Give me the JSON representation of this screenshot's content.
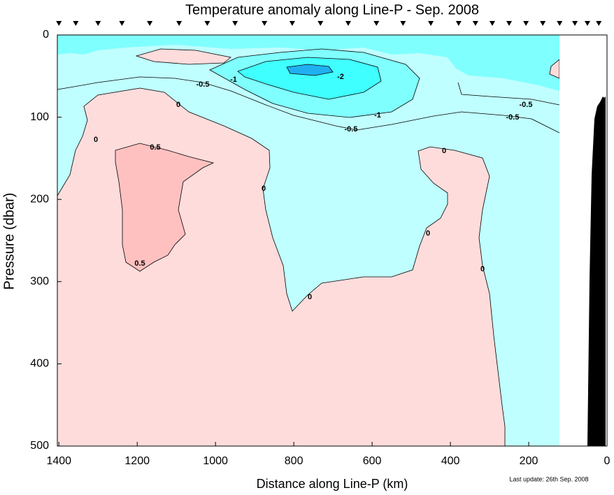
{
  "chart_data": {
    "type": "contour",
    "title": "Temperature anomaly along Line-P - Sep. 2008",
    "xlabel": "Distance along Line-P (km)",
    "ylabel": "Pressure (dbar)",
    "note": "Last update: 26th Sep. 2008",
    "xlim": [
      1404,
      0
    ],
    "xticks": [
      1400,
      1200,
      1000,
      800,
      600,
      400,
      200,
      0
    ],
    "ylim": [
      0,
      500
    ],
    "yticks": [
      0,
      100,
      200,
      300,
      400,
      500
    ],
    "stations": [
      1400,
      1357,
      1300,
      1239,
      1168,
      1093,
      1021,
      950,
      875,
      804,
      732,
      661,
      589,
      521,
      450,
      379,
      336,
      293,
      250,
      207,
      164,
      121,
      82,
      50,
      21
    ],
    "contour_labels": [
      "-0.5",
      "-1",
      "-2",
      "-1",
      "-0.5",
      "-0.5",
      "-0.5",
      "0",
      "0",
      "0.5",
      "0.5",
      "0",
      "0",
      "0",
      "0",
      "0"
    ]
  }
}
